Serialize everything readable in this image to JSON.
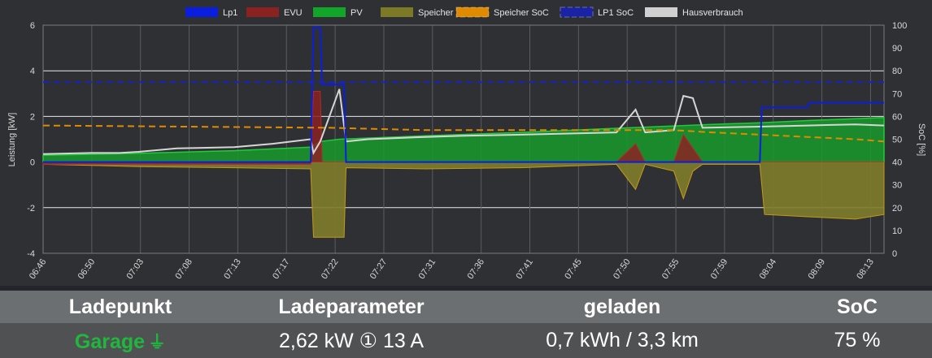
{
  "chart_data": {
    "type": "area",
    "legend_position": "top",
    "legend": [
      {
        "name": "Lp1",
        "color": "#0a1ee0",
        "style": "solid"
      },
      {
        "name": "EVU",
        "color": "#8a2222",
        "style": "solid"
      },
      {
        "name": "PV",
        "color": "#11a62a",
        "style": "solid"
      },
      {
        "name": "Speicher",
        "color": "#7d7a27",
        "style": "solid"
      },
      {
        "name": "Speicher SoC",
        "color": "#e08a00",
        "style": "dashed"
      },
      {
        "name": "LP1 SoC",
        "color": "#1a22a6",
        "style": "dashed"
      },
      {
        "name": "Hausverbrauch",
        "color": "#d0d0d0",
        "style": "solid"
      }
    ],
    "ylabel_left": "Leistung [kW]",
    "ylabel_right": "SoC [%]",
    "ylim_left": [
      -4,
      6
    ],
    "ylim_right": [
      0,
      100
    ],
    "yticks_left": [
      "6",
      "4",
      "2",
      "0",
      "-2",
      "-4"
    ],
    "yticks_right": [
      "100",
      "90",
      "80",
      "70",
      "60",
      "50",
      "40",
      "30",
      "20",
      "10",
      "0"
    ],
    "x_ticks": [
      "06:46",
      "06:50",
      "07:03",
      "07:08",
      "07:13",
      "07:17",
      "07:22",
      "07:27",
      "07:31",
      "07:36",
      "07:41",
      "07:45",
      "07:50",
      "07:55",
      "07:59",
      "08:04",
      "08:09",
      "08:13"
    ],
    "grid": true,
    "x_range": [
      0,
      88
    ],
    "series": [
      {
        "name": "Lp1",
        "points": [
          [
            0,
            0
          ],
          [
            28,
            0
          ],
          [
            28.3,
            5.9
          ],
          [
            29,
            5.9
          ],
          [
            29.2,
            3.4
          ],
          [
            31.5,
            3.4
          ],
          [
            31.7,
            0
          ],
          [
            75,
            0
          ],
          [
            75.2,
            2.4
          ],
          [
            80,
            2.4
          ],
          [
            80.2,
            2.6
          ],
          [
            88,
            2.6
          ]
        ]
      },
      {
        "name": "EVU",
        "points": [
          [
            0,
            -0.1
          ],
          [
            28,
            -0.1
          ],
          [
            28.3,
            3.1
          ],
          [
            29,
            3.1
          ],
          [
            29.2,
            0
          ],
          [
            44,
            0
          ],
          [
            60,
            0
          ],
          [
            62,
            0.8
          ],
          [
            63,
            0
          ],
          [
            66,
            0
          ],
          [
            67,
            1.2
          ],
          [
            68,
            0.6
          ],
          [
            69,
            0
          ],
          [
            75,
            0
          ],
          [
            88,
            0
          ]
        ]
      },
      {
        "name": "PV",
        "points": [
          [
            0,
            0.3
          ],
          [
            10,
            0.38
          ],
          [
            20,
            0.5
          ],
          [
            28,
            0.65
          ],
          [
            29,
            0.9
          ],
          [
            31,
            1.0
          ],
          [
            40,
            1.15
          ],
          [
            50,
            1.3
          ],
          [
            60,
            1.48
          ],
          [
            70,
            1.65
          ],
          [
            75,
            1.72
          ],
          [
            80,
            1.82
          ],
          [
            85,
            1.9
          ],
          [
            88,
            1.95
          ]
        ]
      },
      {
        "name": "Speicher",
        "points": [
          [
            0,
            -0.1
          ],
          [
            10,
            -0.2
          ],
          [
            20,
            -0.25
          ],
          [
            28,
            -0.3
          ],
          [
            28.3,
            -3.3
          ],
          [
            31.5,
            -3.3
          ],
          [
            31.7,
            -0.25
          ],
          [
            40,
            -0.3
          ],
          [
            50,
            -0.25
          ],
          [
            60,
            -0.1
          ],
          [
            62,
            -1.2
          ],
          [
            63,
            -0.1
          ],
          [
            66,
            -0.4
          ],
          [
            67,
            -1.6
          ],
          [
            68,
            -0.4
          ],
          [
            69,
            -0.1
          ],
          [
            75,
            -0.1
          ],
          [
            75.5,
            -2.3
          ],
          [
            80,
            -2.4
          ],
          [
            85,
            -2.5
          ],
          [
            88,
            -2.3
          ]
        ]
      },
      {
        "name": "Speicher SoC",
        "points": [
          [
            0,
            56
          ],
          [
            30,
            55
          ],
          [
            40,
            54
          ],
          [
            60,
            54
          ],
          [
            66,
            54
          ],
          [
            70,
            53
          ],
          [
            75,
            52
          ],
          [
            80,
            51
          ],
          [
            85,
            50
          ],
          [
            88,
            49
          ]
        ]
      },
      {
        "name": "LP1 SoC",
        "points": [
          [
            0,
            75
          ],
          [
            88,
            75
          ]
        ]
      },
      {
        "name": "Hausverbrauch",
        "points": [
          [
            0,
            0.35
          ],
          [
            5,
            0.4
          ],
          [
            8,
            0.4
          ],
          [
            10,
            0.45
          ],
          [
            14,
            0.6
          ],
          [
            20,
            0.65
          ],
          [
            24,
            0.8
          ],
          [
            28,
            1.0
          ],
          [
            28.3,
            0.4
          ],
          [
            29,
            0.9
          ],
          [
            31,
            3.2
          ],
          [
            31.7,
            0.9
          ],
          [
            34,
            1.0
          ],
          [
            40,
            1.1
          ],
          [
            44,
            1.15
          ],
          [
            50,
            1.2
          ],
          [
            60,
            1.3
          ],
          [
            62,
            2.3
          ],
          [
            63,
            1.3
          ],
          [
            66,
            1.4
          ],
          [
            67,
            2.9
          ],
          [
            68,
            2.8
          ],
          [
            69,
            1.5
          ],
          [
            75,
            1.55
          ],
          [
            80,
            1.6
          ],
          [
            85,
            1.65
          ],
          [
            88,
            1.6
          ]
        ]
      }
    ]
  },
  "table": {
    "headers": [
      "Ladepunkt",
      "Ladeparameter",
      "geladen",
      "SoC"
    ],
    "lp_name": "Garage",
    "lp_icon": "⏚",
    "params": "2,62 kW ① 13 A",
    "charged": "0,7 kWh / 3,3 km",
    "soc": "75 %",
    "colors": {
      "header_bg": "#6b6f72",
      "row_bg": "#4f5153",
      "lp_active": "#1fb83d"
    }
  }
}
